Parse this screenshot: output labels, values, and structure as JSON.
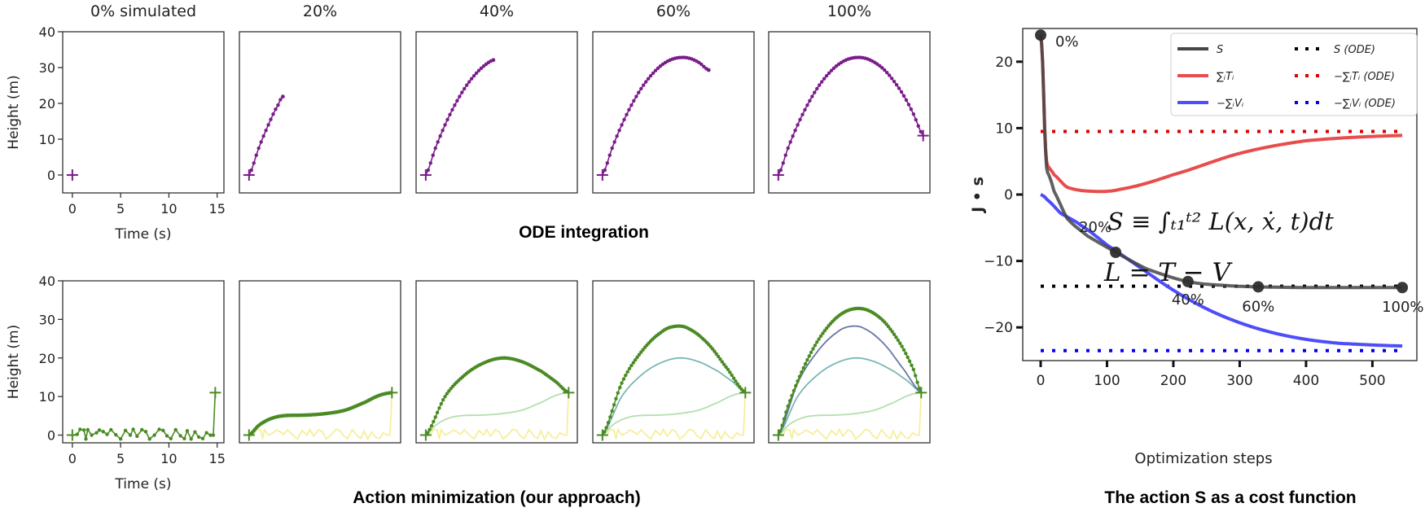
{
  "figure": {
    "ode_caption": "ODE integration",
    "action_caption": "Action minimization (our approach)",
    "cost_caption": "The action S as a cost function",
    "formula_action": "S ≡ ∫ₜ₁ᵗ² L(x, ẋ, t)dt",
    "formula_lagrangian": "L = T − V"
  },
  "colors": {
    "ode": "#7b1b8c",
    "action_current": "#4b8b24",
    "stage_0": "#f7ee9c",
    "stage_20": "#b3dfae",
    "stage_40": "#7ab7b3",
    "stage_60": "#6677a6",
    "S": "#454545",
    "T": "#e84d4d",
    "V": "#4d4dfa",
    "S_ode": "#000000",
    "T_ode": "#dd0000",
    "V_ode": "#0000ee"
  },
  "chart_data": [
    {
      "type": "line",
      "name": "ode-grid",
      "ylabel": "Height (m)",
      "xlabel": "Time (s)",
      "xticks": [
        0,
        5,
        10,
        15
      ],
      "yticks": [
        0,
        10,
        20,
        30,
        40
      ],
      "xlim": [
        -1,
        15.7
      ],
      "ylim": [
        -5,
        40
      ],
      "panels": [
        {
          "title": "0% simulated",
          "points": [
            [
              0,
              0
            ]
          ]
        },
        {
          "title": "20%",
          "points": [
            [
              0,
              0
            ],
            [
              1,
              7.5
            ],
            [
              2,
              14
            ],
            [
              3,
              19.5
            ],
            [
              3.5,
              21.9
            ]
          ]
        },
        {
          "title": "40%",
          "points": [
            [
              0,
              0
            ],
            [
              1,
              7.5
            ],
            [
              2,
              14
            ],
            [
              3,
              19.5
            ],
            [
              4,
              24.1
            ],
            [
              5,
              27.7
            ],
            [
              6,
              30.4
            ],
            [
              7,
              32.1
            ]
          ]
        },
        {
          "title": "60%",
          "points": [
            [
              0,
              0
            ],
            [
              1,
              7.5
            ],
            [
              2,
              14
            ],
            [
              3,
              19.5
            ],
            [
              4,
              24.1
            ],
            [
              5,
              27.7
            ],
            [
              6,
              30.4
            ],
            [
              7,
              32.1
            ],
            [
              8,
              32.8
            ],
            [
              9,
              32.6
            ],
            [
              10,
              31.4
            ],
            [
              11,
              29.3
            ]
          ]
        },
        {
          "title": "100%",
          "points": [
            [
              0,
              0
            ],
            [
              1,
              7.5
            ],
            [
              2,
              14
            ],
            [
              3,
              19.5
            ],
            [
              4,
              24.1
            ],
            [
              5,
              27.7
            ],
            [
              6,
              30.4
            ],
            [
              7,
              32.1
            ],
            [
              8,
              32.8
            ],
            [
              9,
              32.6
            ],
            [
              10,
              31.4
            ],
            [
              11,
              29.3
            ],
            [
              12,
              26.1
            ],
            [
              13,
              22.1
            ],
            [
              14,
              17
            ],
            [
              15,
              11
            ]
          ]
        }
      ]
    },
    {
      "type": "line",
      "name": "action-grid",
      "ylabel": "Height (m)",
      "xlabel": "Time (s)",
      "xticks": [
        0,
        5,
        10,
        15
      ],
      "yticks": [
        0,
        10,
        20,
        30,
        40
      ],
      "xlim": [
        -1,
        15.7
      ],
      "ylim": [
        -2,
        40
      ],
      "stages": {
        "0%": [
          [
            0,
            0
          ],
          [
            0.5,
            0.2
          ],
          [
            0.8,
            1.5
          ],
          [
            1.2,
            1.3
          ],
          [
            1.4,
            -1
          ],
          [
            1.6,
            1.4
          ],
          [
            2,
            0
          ],
          [
            2.5,
            0.6
          ],
          [
            2.8,
            1.3
          ],
          [
            3.2,
            0.9
          ],
          [
            3.6,
            0.2
          ],
          [
            4,
            1.4
          ],
          [
            4.5,
            0.1
          ],
          [
            5,
            -1
          ],
          [
            5.5,
            1.2
          ],
          [
            6,
            0
          ],
          [
            6.3,
            1.5
          ],
          [
            6.7,
            -0.3
          ],
          [
            7.2,
            1.4
          ],
          [
            7.6,
            0.9
          ],
          [
            8,
            -1
          ],
          [
            8.5,
            0
          ],
          [
            9,
            1.5
          ],
          [
            9.4,
            1.2
          ],
          [
            9.8,
            -0.2
          ],
          [
            10.2,
            -0.9
          ],
          [
            10.7,
            1.4
          ],
          [
            11.2,
            -0.2
          ],
          [
            11.6,
            -0.9
          ],
          [
            11.9,
            1.1
          ],
          [
            12.3,
            -1
          ],
          [
            12.7,
            0.8
          ],
          [
            13.1,
            -0.5
          ],
          [
            13.5,
            -0.9
          ],
          [
            13.9,
            0.6
          ],
          [
            14.3,
            0
          ],
          [
            14.6,
            0
          ],
          [
            14.8,
            11
          ]
        ],
        "20%": [
          [
            0,
            0
          ],
          [
            1,
            2.5
          ],
          [
            2,
            4
          ],
          [
            3,
            4.8
          ],
          [
            4,
            5.1
          ],
          [
            6,
            5.2
          ],
          [
            8,
            5.6
          ],
          [
            10,
            6.5
          ],
          [
            12,
            8.5
          ],
          [
            13.5,
            10.3
          ],
          [
            14.8,
            11
          ]
        ],
        "40%": [
          [
            0,
            0
          ],
          [
            2,
            10
          ],
          [
            4,
            15.5
          ],
          [
            6,
            18.7
          ],
          [
            8,
            20
          ],
          [
            10,
            19
          ],
          [
            12,
            16.5
          ],
          [
            13.5,
            13.8
          ],
          [
            14.8,
            11
          ]
        ],
        "60%": [
          [
            0,
            0
          ],
          [
            2,
            13.5
          ],
          [
            4,
            21.5
          ],
          [
            6,
            26.5
          ],
          [
            7.5,
            28.2
          ],
          [
            9,
            27.5
          ],
          [
            11,
            23.5
          ],
          [
            13,
            17
          ],
          [
            14.8,
            11
          ]
        ],
        "100%": [
          [
            0,
            0
          ],
          [
            1,
            7.5
          ],
          [
            2,
            14
          ],
          [
            3,
            19.5
          ],
          [
            4,
            24.1
          ],
          [
            5,
            27.7
          ],
          [
            6,
            30.4
          ],
          [
            7,
            32.1
          ],
          [
            8,
            32.8
          ],
          [
            9,
            32.6
          ],
          [
            10,
            31.4
          ],
          [
            11,
            29.3
          ],
          [
            12,
            26.1
          ],
          [
            13,
            22.1
          ],
          [
            14,
            17
          ],
          [
            14.8,
            11
          ]
        ]
      },
      "panels": [
        {
          "current": "0%",
          "previous": []
        },
        {
          "current": "20%",
          "previous": [
            "0%"
          ]
        },
        {
          "current": "40%",
          "previous": [
            "0%",
            "20%"
          ]
        },
        {
          "current": "60%",
          "previous": [
            "0%",
            "20%",
            "40%"
          ]
        },
        {
          "current": "100%",
          "previous": [
            "0%",
            "20%",
            "40%",
            "60%"
          ]
        }
      ]
    },
    {
      "type": "line",
      "name": "cost-chart",
      "xlabel": "Optimization steps",
      "ylabel": "J • s",
      "xticks": [
        0,
        100,
        200,
        300,
        400,
        500
      ],
      "yticks": [
        20,
        10,
        0,
        -10,
        -20
      ],
      "xlim": [
        -27,
        567
      ],
      "ylim": [
        -25,
        25
      ],
      "series": [
        {
          "name": "∑ᵢTᵢ",
          "key": "T",
          "style": "solid",
          "points": [
            [
              0,
              24
            ],
            [
              3,
              20
            ],
            [
              6,
              10
            ],
            [
              9,
              5
            ],
            [
              13,
              4
            ],
            [
              20,
              3
            ],
            [
              40,
              1.1
            ],
            [
              75,
              0.5
            ],
            [
              120,
              0.8
            ],
            [
              200,
              3
            ],
            [
              300,
              6.2
            ],
            [
              400,
              8.1
            ],
            [
              545,
              8.9
            ]
          ]
        },
        {
          "name": "−∑ᵢVᵢ",
          "key": "V",
          "style": "solid",
          "points": [
            [
              0,
              0
            ],
            [
              10,
              -0.8
            ],
            [
              30,
              -2.8
            ],
            [
              60,
              -4.6
            ],
            [
              100,
              -7.6
            ],
            [
              150,
              -11
            ],
            [
              200,
              -14.4
            ],
            [
              250,
              -17.2
            ],
            [
              300,
              -19.3
            ],
            [
              350,
              -20.8
            ],
            [
              400,
              -21.8
            ],
            [
              450,
              -22.4
            ],
            [
              545,
              -22.8
            ]
          ]
        },
        {
          "name": "S",
          "key": "S",
          "style": "solid",
          "points": [
            [
              0,
              24
            ],
            [
              3,
              20
            ],
            [
              6,
              10
            ],
            [
              9,
              4
            ],
            [
              12,
              3
            ],
            [
              20,
              0.5
            ],
            [
              40,
              -3.6
            ],
            [
              70,
              -6.2
            ],
            [
              113,
              -8.7
            ],
            [
              160,
              -11.2
            ],
            [
              222,
              -13.1
            ],
            [
              280,
              -13.7
            ],
            [
              328,
              -13.9
            ],
            [
              400,
              -14
            ],
            [
              545,
              -14
            ]
          ]
        },
        {
          "name": "S (ODE)",
          "key": "S_ode",
          "style": "dotted",
          "points": [
            [
              0,
              -13.8
            ],
            [
              545,
              -13.8
            ]
          ]
        },
        {
          "name": "−∑ᵢTᵢ (ODE)",
          "key": "T_ode",
          "style": "dotted",
          "points": [
            [
              0,
              9.5
            ],
            [
              545,
              9.5
            ]
          ]
        },
        {
          "name": "−∑ᵢVᵢ (ODE)",
          "key": "V_ode",
          "style": "dotted",
          "points": [
            [
              0,
              -23.5
            ],
            [
              545,
              -23.5
            ]
          ]
        }
      ],
      "milestones": [
        {
          "label": "0%",
          "x": 0,
          "y": 24
        },
        {
          "label": "20%",
          "x": 113,
          "y": -8.7
        },
        {
          "label": "40%",
          "x": 222,
          "y": -13.1
        },
        {
          "label": "60%",
          "x": 328,
          "y": -13.9
        },
        {
          "label": "100%",
          "x": 545,
          "y": -14
        }
      ],
      "legend_position": "top-right"
    }
  ]
}
